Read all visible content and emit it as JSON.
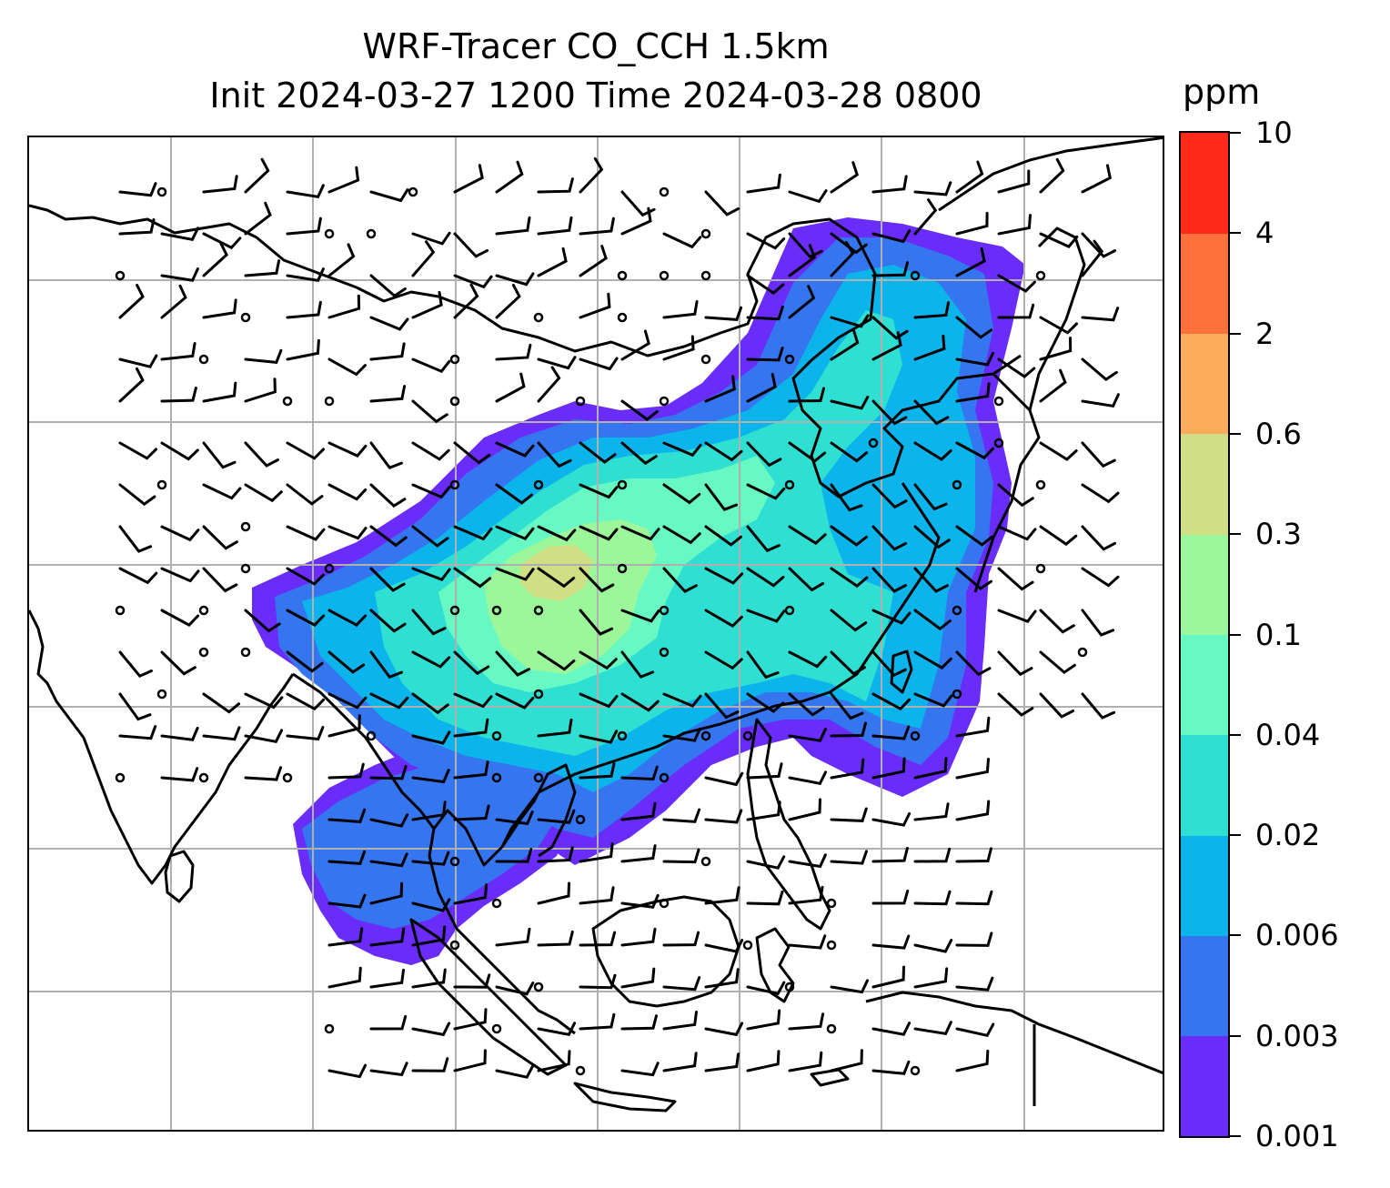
{
  "title": {
    "line1": "WRF-Tracer CO_CCH 1.5km",
    "line2": "Init 2024-03-27 1200 Time 2024-03-28 0800"
  },
  "colorbar": {
    "unit": "ppm",
    "ticks": [
      "0.001",
      "0.003",
      "0.006",
      "0.02",
      "0.04",
      "0.1",
      "0.3",
      "0.6",
      "2",
      "4",
      "10"
    ],
    "colors": [
      "#6a2cf8",
      "#3575f0",
      "#0bb4ea",
      "#2fe0d2",
      "#68f8c4",
      "#9cf79a",
      "#d0de86",
      "#fdac5c",
      "#ff713c",
      "#ff2a1a"
    ]
  },
  "map": {
    "gridlines": true,
    "coastline_color": "#000000",
    "gridline_color": "#b0b0b0",
    "wind_barbs": true
  }
}
